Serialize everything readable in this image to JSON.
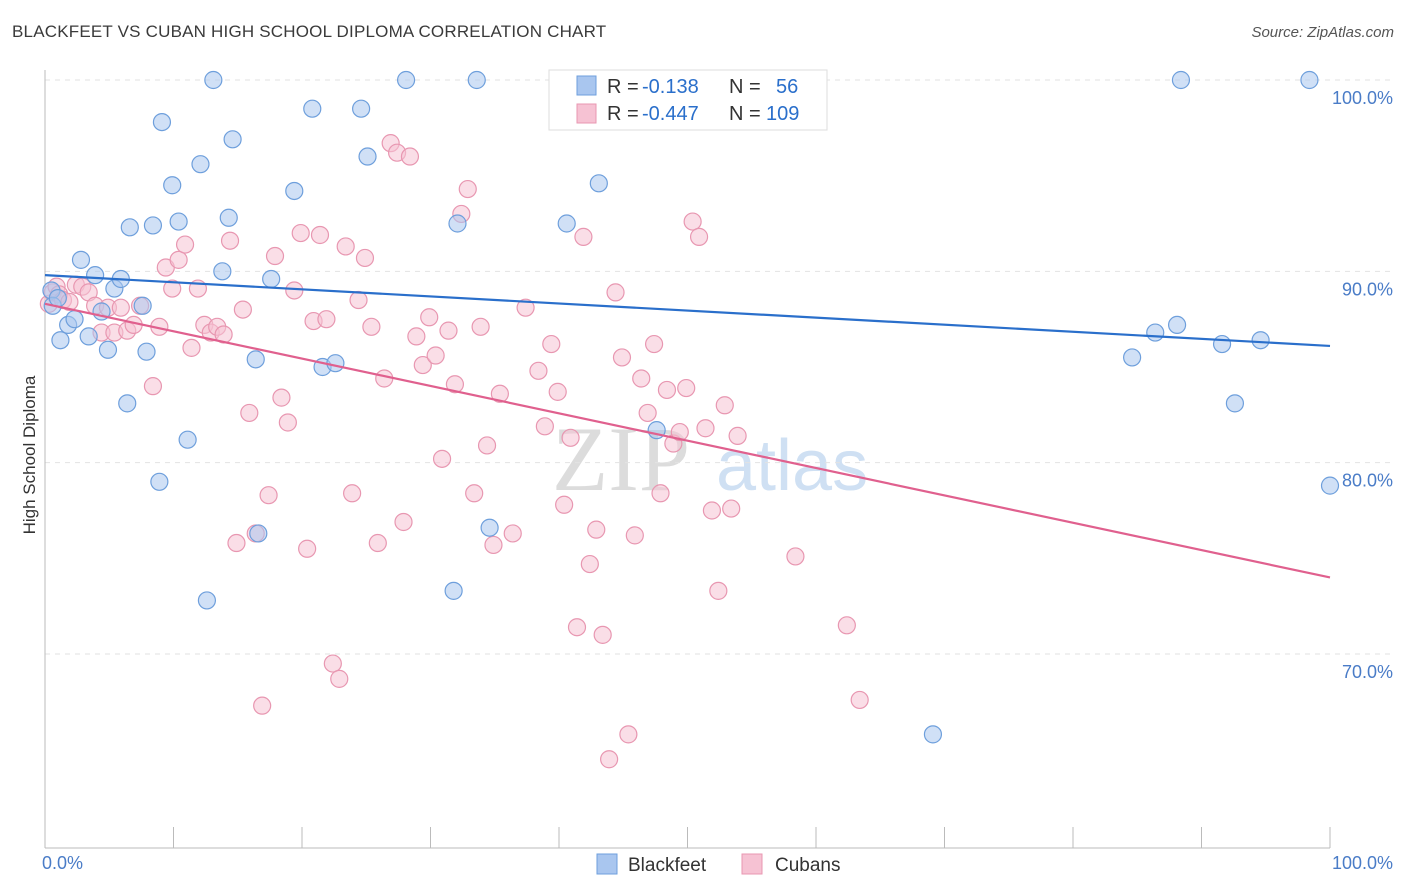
{
  "title": "BLACKFEET VS CUBAN HIGH SCHOOL DIPLOMA CORRELATION CHART",
  "source": "Source: ZipAtlas.com",
  "watermark": {
    "zip": "ZIP",
    "atlas": "atlas"
  },
  "legend": {
    "rows": [
      {
        "r_label": "R =",
        "r_value": "-0.138",
        "n_label": "N =",
        "n_value": "56",
        "color": "#a9c6ef"
      },
      {
        "r_label": "R =",
        "r_value": "-0.447",
        "n_label": "N =",
        "n_value": "109",
        "color": "#f6b6cb"
      }
    ]
  },
  "bottom_legend": [
    {
      "label": "Blackfeet",
      "color": "#a9c6ef"
    },
    {
      "label": "Cubans",
      "color": "#f6b6cb"
    }
  ],
  "colors": {
    "blue_fill": "#a9c6ef",
    "blue_stroke": "#6e9fdc",
    "blue_line": "#2a6fcb",
    "pink_fill": "#f6c2d3",
    "pink_stroke": "#e897b1",
    "pink_line": "#e0608e",
    "tick_text": "#4a7cc7",
    "grid": "#e2e2e2"
  },
  "chart_data": {
    "type": "scatter",
    "title": "BLACKFEET VS CUBAN HIGH SCHOOL DIPLOMA CORRELATION CHART",
    "xlabel": "",
    "ylabel": "High School Diploma",
    "xlim": [
      0,
      100
    ],
    "ylim": [
      60.5,
      101.5
    ],
    "x_tick_labels": [
      "0.0%",
      "100.0%"
    ],
    "y_ticks": [
      70,
      80,
      90,
      100
    ],
    "y_tick_labels": [
      "70.0%",
      "80.0%",
      "90.0%",
      "100.0%"
    ],
    "grid": true,
    "legend_position": "top-center",
    "series": [
      {
        "name": "Blackfeet",
        "R": -0.138,
        "N": 56,
        "trend": {
          "x": [
            0,
            100
          ],
          "y": [
            89.8,
            86.1
          ]
        },
        "points": [
          [
            0.5,
            89.0
          ],
          [
            0.6,
            88.2
          ],
          [
            1.2,
            86.4
          ],
          [
            1.8,
            87.2
          ],
          [
            2.3,
            87.5
          ],
          [
            2.8,
            90.6
          ],
          [
            3.4,
            86.6
          ],
          [
            3.9,
            89.8
          ],
          [
            4.4,
            87.9
          ],
          [
            4.9,
            85.9
          ],
          [
            5.4,
            89.1
          ],
          [
            5.9,
            89.6
          ],
          [
            6.4,
            83.1
          ],
          [
            6.6,
            92.3
          ],
          [
            7.6,
            88.2
          ],
          [
            7.9,
            85.8
          ],
          [
            8.4,
            92.4
          ],
          [
            8.9,
            79.0
          ],
          [
            9.1,
            97.8
          ],
          [
            9.9,
            94.5
          ],
          [
            10.4,
            92.6
          ],
          [
            11.1,
            81.2
          ],
          [
            12.1,
            95.6
          ],
          [
            12.6,
            72.8
          ],
          [
            13.1,
            100.0
          ],
          [
            13.8,
            90.0
          ],
          [
            14.3,
            92.8
          ],
          [
            14.6,
            96.9
          ],
          [
            16.4,
            85.4
          ],
          [
            16.6,
            76.3
          ],
          [
            17.6,
            89.6
          ],
          [
            19.4,
            94.2
          ],
          [
            20.8,
            98.5
          ],
          [
            21.6,
            85.0
          ],
          [
            22.6,
            85.2
          ],
          [
            24.6,
            98.5
          ],
          [
            25.1,
            96.0
          ],
          [
            28.1,
            100.0
          ],
          [
            31.8,
            73.3
          ],
          [
            32.1,
            92.5
          ],
          [
            33.6,
            100.0
          ],
          [
            34.6,
            76.6
          ],
          [
            40.6,
            92.5
          ],
          [
            43.1,
            94.6
          ],
          [
            47.6,
            81.7
          ],
          [
            69.1,
            65.8
          ],
          [
            84.6,
            85.5
          ],
          [
            86.4,
            86.8
          ],
          [
            88.1,
            87.2
          ],
          [
            88.4,
            100.0
          ],
          [
            91.6,
            86.2
          ],
          [
            92.6,
            83.1
          ],
          [
            94.6,
            86.4
          ],
          [
            100.0,
            78.8
          ],
          [
            98.4,
            100.0
          ],
          [
            1.0,
            88.6
          ]
        ]
      },
      {
        "name": "Cubans",
        "R": -0.447,
        "N": 109,
        "trend": {
          "x": [
            0,
            100
          ],
          "y": [
            88.3,
            74.0
          ]
        },
        "points": [
          [
            0.3,
            88.3
          ],
          [
            0.6,
            88.9
          ],
          [
            0.9,
            89.2
          ],
          [
            1.1,
            88.8
          ],
          [
            1.4,
            88.5
          ],
          [
            1.9,
            88.4
          ],
          [
            2.4,
            89.3
          ],
          [
            2.9,
            89.2
          ],
          [
            3.4,
            88.9
          ],
          [
            3.9,
            88.2
          ],
          [
            4.4,
            86.8
          ],
          [
            4.9,
            88.1
          ],
          [
            5.4,
            86.8
          ],
          [
            5.9,
            88.1
          ],
          [
            6.4,
            86.9
          ],
          [
            6.9,
            87.2
          ],
          [
            7.4,
            88.2
          ],
          [
            8.4,
            84.0
          ],
          [
            8.9,
            87.1
          ],
          [
            9.4,
            90.2
          ],
          [
            9.9,
            89.1
          ],
          [
            10.4,
            90.6
          ],
          [
            10.9,
            91.4
          ],
          [
            11.4,
            86.0
          ],
          [
            11.9,
            89.1
          ],
          [
            12.4,
            87.2
          ],
          [
            12.9,
            86.8
          ],
          [
            13.4,
            87.1
          ],
          [
            13.9,
            86.7
          ],
          [
            14.4,
            91.6
          ],
          [
            14.9,
            75.8
          ],
          [
            15.4,
            88.0
          ],
          [
            15.9,
            82.6
          ],
          [
            16.4,
            76.3
          ],
          [
            16.9,
            67.3
          ],
          [
            17.4,
            78.3
          ],
          [
            17.9,
            90.8
          ],
          [
            18.4,
            83.4
          ],
          [
            18.9,
            82.1
          ],
          [
            19.4,
            89.0
          ],
          [
            19.9,
            92.0
          ],
          [
            20.4,
            75.5
          ],
          [
            20.9,
            87.4
          ],
          [
            21.4,
            91.9
          ],
          [
            21.9,
            87.5
          ],
          [
            22.4,
            69.5
          ],
          [
            22.9,
            68.7
          ],
          [
            23.4,
            91.3
          ],
          [
            23.9,
            78.4
          ],
          [
            24.4,
            88.5
          ],
          [
            24.9,
            90.7
          ],
          [
            25.4,
            87.1
          ],
          [
            25.9,
            75.8
          ],
          [
            26.4,
            84.4
          ],
          [
            26.9,
            96.7
          ],
          [
            27.4,
            96.2
          ],
          [
            27.9,
            76.9
          ],
          [
            28.4,
            96.0
          ],
          [
            28.9,
            86.6
          ],
          [
            29.4,
            85.1
          ],
          [
            29.9,
            87.6
          ],
          [
            30.4,
            85.6
          ],
          [
            30.9,
            80.2
          ],
          [
            31.4,
            86.9
          ],
          [
            31.9,
            84.1
          ],
          [
            32.4,
            93.0
          ],
          [
            32.9,
            94.3
          ],
          [
            33.4,
            78.4
          ],
          [
            33.9,
            87.1
          ],
          [
            34.4,
            80.9
          ],
          [
            34.9,
            75.7
          ],
          [
            35.4,
            83.6
          ],
          [
            36.4,
            76.3
          ],
          [
            37.4,
            88.1
          ],
          [
            38.4,
            84.8
          ],
          [
            38.9,
            81.9
          ],
          [
            39.4,
            86.2
          ],
          [
            39.9,
            83.7
          ],
          [
            40.4,
            77.8
          ],
          [
            40.9,
            81.3
          ],
          [
            41.4,
            71.4
          ],
          [
            41.9,
            91.8
          ],
          [
            42.4,
            74.7
          ],
          [
            42.9,
            76.5
          ],
          [
            43.4,
            71.0
          ],
          [
            43.9,
            64.5
          ],
          [
            44.4,
            88.9
          ],
          [
            44.9,
            85.5
          ],
          [
            45.4,
            65.8
          ],
          [
            45.9,
            76.2
          ],
          [
            46.4,
            84.4
          ],
          [
            46.9,
            82.6
          ],
          [
            47.4,
            86.2
          ],
          [
            47.9,
            78.4
          ],
          [
            48.4,
            83.8
          ],
          [
            48.9,
            81.0
          ],
          [
            49.4,
            81.6
          ],
          [
            49.9,
            83.9
          ],
          [
            50.4,
            92.6
          ],
          [
            50.9,
            91.8
          ],
          [
            51.4,
            81.8
          ],
          [
            51.9,
            77.5
          ],
          [
            52.4,
            73.3
          ],
          [
            52.9,
            83.0
          ],
          [
            53.4,
            77.6
          ],
          [
            53.9,
            81.4
          ],
          [
            58.4,
            75.1
          ],
          [
            62.4,
            71.5
          ],
          [
            63.4,
            67.6
          ]
        ]
      }
    ]
  }
}
